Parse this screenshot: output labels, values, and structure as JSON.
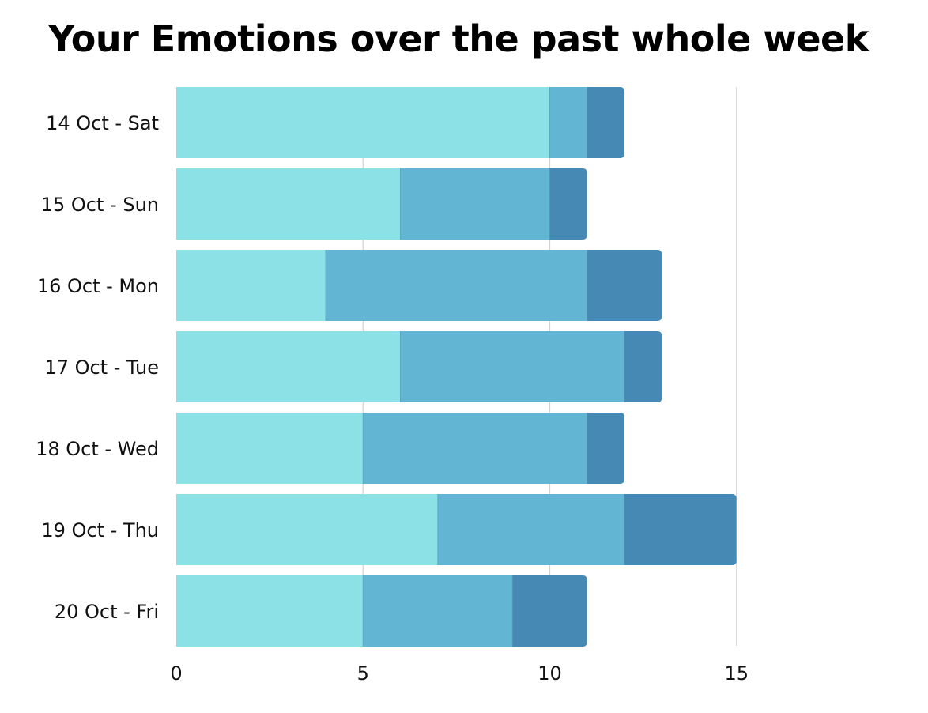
{
  "chart_data": {
    "type": "bar",
    "orientation": "horizontal",
    "stacked": true,
    "title": "Your Emotions over the past whole week",
    "xlabel": "",
    "ylabel": "",
    "categories": [
      "14 Oct - Sat",
      "15 Oct - Sun",
      "16 Oct - Mon",
      "17 Oct - Tue",
      "18 Oct - Wed",
      "19 Oct - Thu",
      "20 Oct - Fri"
    ],
    "series": [
      {
        "color": "#8be1e6",
        "values": [
          10,
          6,
          4,
          6,
          5,
          7,
          5
        ]
      },
      {
        "color": "#62b5d3",
        "values": [
          1,
          4,
          7,
          6,
          6,
          5,
          4
        ]
      },
      {
        "color": "#4789b5",
        "values": [
          1,
          1,
          2,
          1,
          1,
          3,
          2
        ]
      }
    ],
    "xlim": [
      0,
      18
    ],
    "xticks": [
      0,
      5,
      10,
      15
    ],
    "grid": true,
    "legend": "none"
  }
}
